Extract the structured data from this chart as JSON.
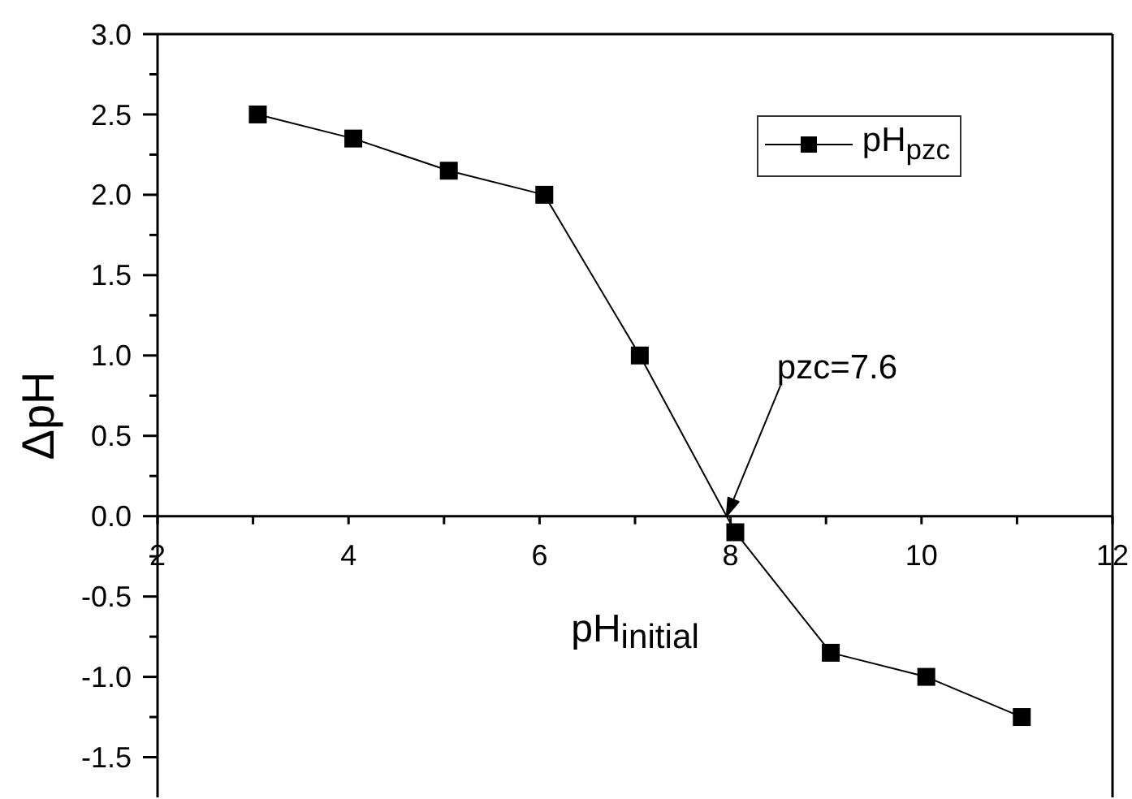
{
  "chart_data": {
    "type": "line",
    "xlabel": "pH$_{initial}$",
    "ylabel": "ΔpH",
    "x": [
      3.05,
      4.05,
      5.05,
      6.05,
      7.05,
      8.05,
      9.05,
      10.05,
      11.05
    ],
    "series": [
      {
        "name": "pH$_{pzc}$",
        "color": "#000000",
        "values": [
          2.5,
          2.35,
          2.15,
          2.0,
          1.0,
          -0.1,
          -0.85,
          -1.0,
          -1.25
        ]
      }
    ],
    "xlim": [
      2,
      12
    ],
    "xticks": [
      2,
      {
        "value": 3,
        "label": null
      },
      4,
      {
        "value": 5,
        "label": null
      },
      6,
      {
        "value": 7,
        "label": null
      },
      8,
      {
        "value": 9,
        "label": null
      },
      10,
      {
        "value": 11,
        "label": null
      },
      12
    ],
    "ylim": [
      -1.75,
      3
    ],
    "yticks": [
      -1.5,
      {
        "value": -1.25,
        "label": null
      },
      {
        "value": -1,
        "label": "-1.0"
      },
      {
        "value": -0.75,
        "label": null
      },
      -0.5,
      {
        "value": -0.25,
        "label": null
      },
      {
        "value": 0,
        "label": "0.0"
      },
      {
        "value": 0.25,
        "label": null
      },
      0.5,
      {
        "value": 0.75,
        "label": null
      },
      {
        "value": 1,
        "label": "1.0"
      },
      {
        "value": 1.25,
        "label": null
      },
      1.5,
      {
        "value": 1.75,
        "label": null
      },
      {
        "value": 2,
        "label": "2.0"
      },
      {
        "value": 2.25,
        "label": null
      },
      2.5,
      {
        "value": 2.75,
        "label": null
      },
      {
        "value": 3,
        "label": "3.0"
      }
    ],
    "legend": "top right",
    "marker": "square",
    "line_style": "solid",
    "annotations": [
      "pzc=7.6"
    ]
  }
}
